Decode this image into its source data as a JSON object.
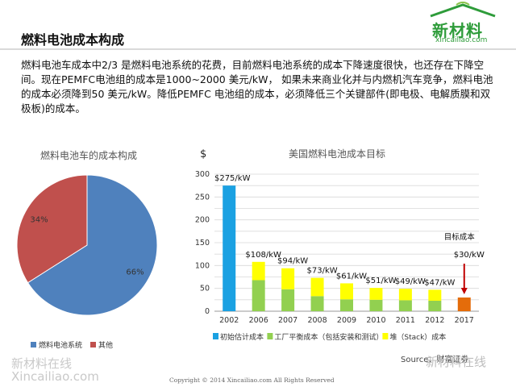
{
  "slide": {
    "title": "燃料电池成本构成",
    "paragraph": "燃料电池车成本中2/3 是燃料电池系统的花费，目前燃料电池系统的成本下降速度很快，也还存在下降空间。现在PEMFC电池组的成本是1000~2000 美元/kW， 如果未来商业化并与内燃机汽车竞争，燃料电池的成本必须降到50 美元/kW。降低PEMFC 电池组的成本，必须降低三个关键部件(即电极、电解质膜和双极板)的成本。",
    "logo_text": "新材料",
    "logo_url": "xincailiao.com",
    "watermark_cn": "新材料在线",
    "watermark_url": "Xincailiao.com",
    "copyright": "Copyright © 2014   Xincailiao.com    All Rights Reserved",
    "source": "Source：财富证券",
    "wechat_mark": "新材料在线"
  },
  "colors": {
    "pie_blue": "#4f81bd",
    "pie_red": "#c0504d",
    "initial": "#1ba1e2",
    "plant": "#92d050",
    "stack": "#ffff00",
    "target": "#e46c0a",
    "arrow": "#c00000"
  },
  "chart_data": [
    {
      "type": "pie",
      "title": "燃料电池车的成本构成",
      "slices": [
        {
          "name": "燃料电池系统",
          "value": 66,
          "label": "66%"
        },
        {
          "name": "其他",
          "value": 34,
          "label": "34%"
        }
      ],
      "legend": "bottom"
    },
    {
      "type": "bar",
      "title": "美国燃料电池成本目标",
      "ylabel": "$",
      "ylim": [
        0,
        300
      ],
      "yticks": [
        0,
        25,
        50,
        75,
        100,
        125,
        150,
        175,
        200,
        225,
        250,
        275,
        300
      ],
      "categories": [
        "2002",
        "2006",
        "2007",
        "2008",
        "2009",
        "2010",
        "2011",
        "2012",
        "2017"
      ],
      "stacked": true,
      "series": [
        {
          "name": "初始估计成本",
          "values": [
            275,
            0,
            0,
            0,
            0,
            0,
            0,
            0,
            0
          ]
        },
        {
          "name": "工厂平衡成本（包括安装和测试）",
          "values": [
            0,
            68,
            48,
            33,
            26,
            25,
            24,
            23,
            0
          ]
        },
        {
          "name": "堆（Stack）成本",
          "values": [
            0,
            40,
            46,
            40,
            35,
            26,
            25,
            24,
            0
          ]
        },
        {
          "name": "",
          "values": [
            0,
            0,
            0,
            0,
            0,
            0,
            0,
            0,
            30
          ]
        }
      ],
      "data_labels": [
        "$275/kW",
        "$108/kW",
        "$94/kW",
        "$73/kW",
        "$61/kW",
        "$51/kW",
        "$49/kW",
        "$47/kW",
        "$30/kW"
      ],
      "annotation": "目标成本",
      "legend": "bottom",
      "grid": true
    }
  ]
}
